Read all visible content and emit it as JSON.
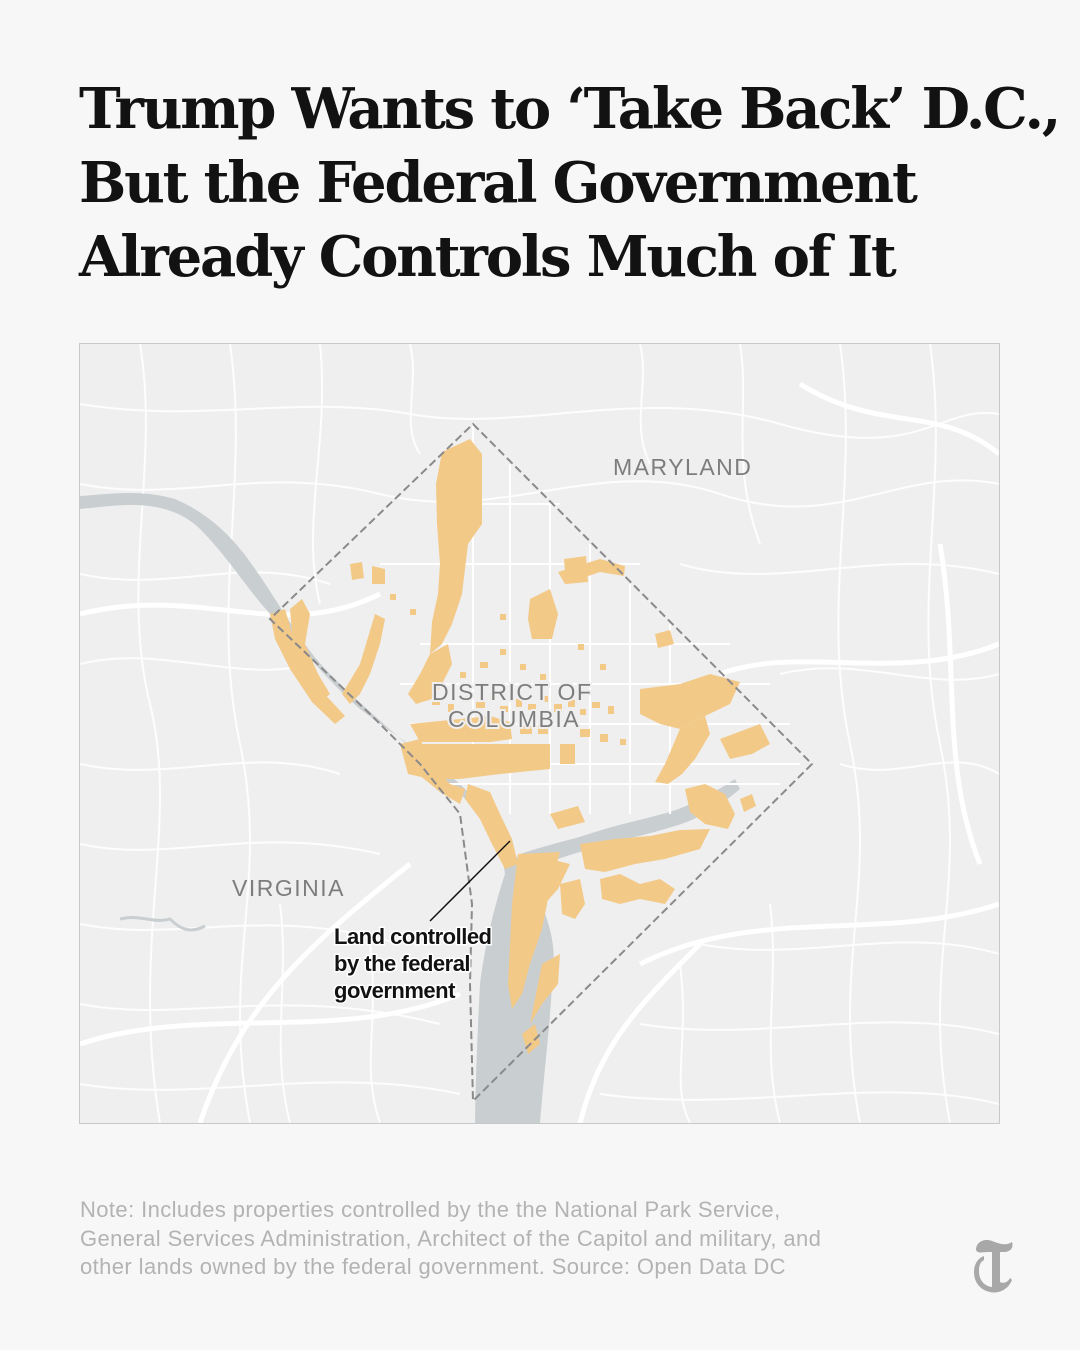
{
  "headline": {
    "line1": "Trump Wants to ‘Take Back’ D.C.,",
    "line2": "But the Federal Government",
    "line3": "Already Controls Much of It"
  },
  "map": {
    "labels": {
      "maryland": "MARYLAND",
      "district_line1": "DISTRICT OF",
      "district_line2": "COLUMBIA",
      "virginia": "VIRGINIA"
    },
    "annotation": {
      "line1": "Land controlled",
      "line2": "by the federal",
      "line3": "government"
    },
    "colors": {
      "federal_land": "#f3c988",
      "water": "#c9ced1",
      "background": "#efefef",
      "roads": "#ffffff",
      "boundary": "#8a8a8a"
    }
  },
  "note": {
    "line1": "Note: Includes properties controlled by the the National Park Service,",
    "line2": "General Services Administration, Architect of the Capitol and military, and",
    "line3": "other lands owned by the federal government. Source: Open Data DC"
  },
  "logo": {
    "icon": "nyt-t-logo-icon"
  }
}
